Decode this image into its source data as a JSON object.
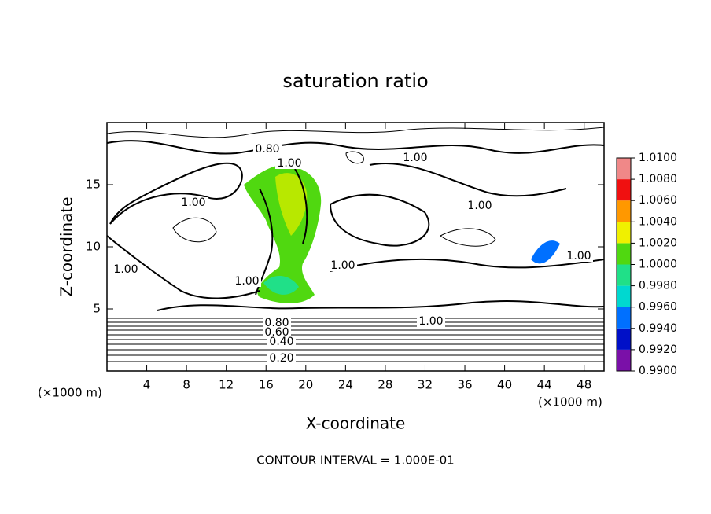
{
  "chart_data": {
    "type": "contour",
    "title": "saturation ratio",
    "x_label": "X-coordinate",
    "y_label": "Z-coordinate",
    "x_unit_labels": [
      "(×1000 m)",
      "(×1000 m)"
    ],
    "xlim": [
      0,
      50
    ],
    "ylim": [
      0,
      20
    ],
    "xticks": [
      4,
      8,
      12,
      16,
      20,
      24,
      28,
      32,
      36,
      40,
      44,
      48
    ],
    "yticks": [
      5,
      10,
      15
    ],
    "contour_labels": [
      "0.80",
      "1.00",
      "1.00",
      "1.00",
      "1.00",
      "1.00",
      "1.00",
      "1.00",
      "1.00",
      "1.00",
      "0.80",
      "0.60",
      "0.40",
      "0.20"
    ],
    "annotation": "CONTOUR INTERVAL = 1.000E-01",
    "colorbar": {
      "lim": [
        0.99,
        1.01
      ],
      "ticks": [
        {
          "value": 1.01,
          "label": "1.0100"
        },
        {
          "value": 1.008,
          "label": "1.0080"
        },
        {
          "value": 1.006,
          "label": "1.0060"
        },
        {
          "value": 1.004,
          "label": "1.0040"
        },
        {
          "value": 1.002,
          "label": "1.0020"
        },
        {
          "value": 1.0,
          "label": "1.0000"
        },
        {
          "value": 0.998,
          "label": "0.9980"
        },
        {
          "value": 0.996,
          "label": "0.9960"
        },
        {
          "value": 0.994,
          "label": "0.9940"
        },
        {
          "value": 0.992,
          "label": "0.9920"
        },
        {
          "value": 0.99,
          "label": "0.9900"
        }
      ],
      "colors": [
        "#7a10a8",
        "#0010c8",
        "#0070ff",
        "#00d8d0",
        "#20e088",
        "#50d810",
        "#f0f000",
        "#ff9800",
        "#f01010",
        "#f08888"
      ]
    }
  }
}
